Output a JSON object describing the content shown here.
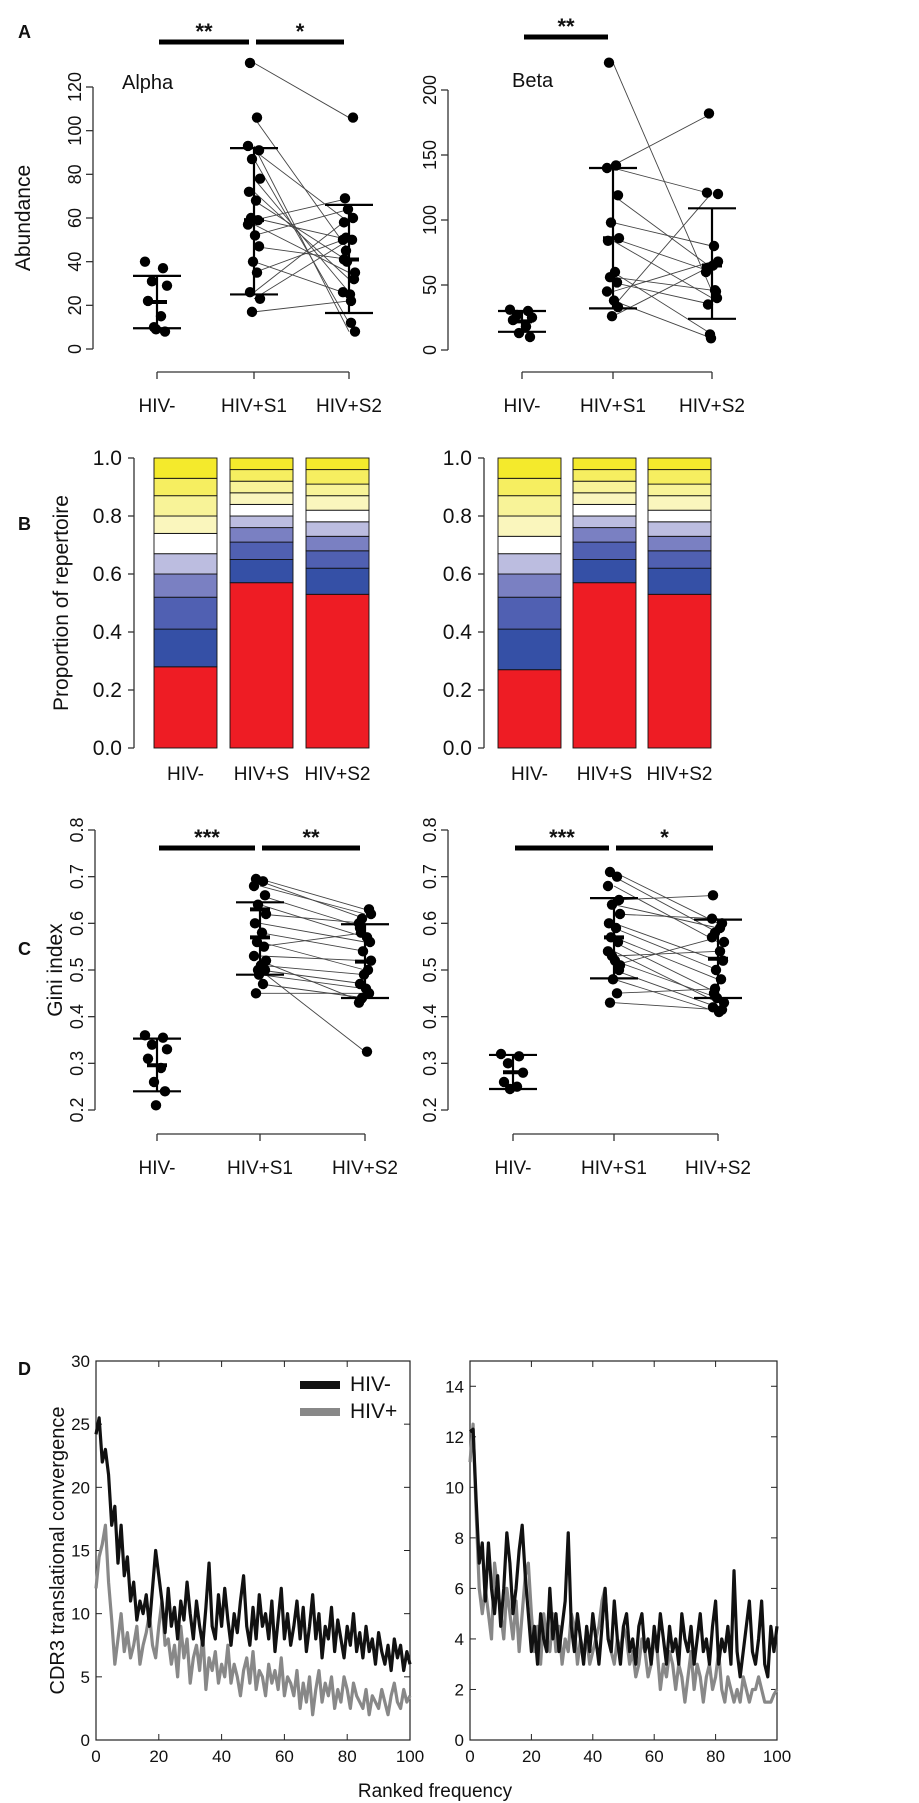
{
  "panel_letters": [
    "A",
    "B",
    "C",
    "D"
  ],
  "colors": {
    "black": "#111111",
    "gray": "#888888",
    "strata": [
      "#ee1c24",
      "#3550a6",
      "#5060b2",
      "#7a80c2",
      "#bcbde0",
      "#ffffff",
      "#faf6bd",
      "#f8f398",
      "#f6ee60",
      "#f4ea2c"
    ]
  },
  "chart_data": [
    {
      "id": "A-alpha",
      "type": "scatter",
      "title": "Alpha",
      "ylabel": "Abundance",
      "ylim": [
        0,
        120
      ],
      "yticks": [
        0,
        20,
        40,
        60,
        80,
        100,
        120
      ],
      "groups": [
        "HIV-",
        "HIV+S1",
        "HIV+S2"
      ],
      "summary": [
        {
          "group": "HIV-",
          "mean": 21.5,
          "lower": 9.5,
          "upper": 33.5
        },
        {
          "group": "HIV+S1",
          "mean": 59,
          "lower": 25,
          "upper": 92
        },
        {
          "group": "HIV+S2",
          "mean": 41,
          "lower": 16.5,
          "upper": 66
        }
      ],
      "hiv_neg": [
        40,
        37,
        31,
        29,
        22,
        15,
        10,
        8,
        9
      ],
      "paired": [
        [
          131,
          106
        ],
        [
          106,
          45
        ],
        [
          93,
          8
        ],
        [
          91,
          58
        ],
        [
          87,
          12
        ],
        [
          78,
          26
        ],
        [
          72,
          32
        ],
        [
          68,
          40
        ],
        [
          60,
          50
        ],
        [
          59,
          69
        ],
        [
          57,
          35
        ],
        [
          52,
          64
        ],
        [
          47,
          41
        ],
        [
          40,
          25
        ],
        [
          35,
          51
        ],
        [
          26,
          60
        ],
        [
          23,
          50
        ],
        [
          17,
          22
        ]
      ],
      "significance": [
        {
          "from": "HIV-",
          "to": "HIV+S1",
          "label": "**"
        },
        {
          "from": "HIV+S1",
          "to": "HIV+S2",
          "label": "*"
        }
      ]
    },
    {
      "id": "A-beta",
      "type": "scatter",
      "title": "Beta",
      "ylim": [
        0,
        200
      ],
      "yticks": [
        0,
        50,
        100,
        150,
        200
      ],
      "groups": [
        "HIV-",
        "HIV+S1",
        "HIV+S2"
      ],
      "summary": [
        {
          "group": "HIV-",
          "mean": 22,
          "lower": 14,
          "upper": 30
        },
        {
          "group": "HIV+S1",
          "mean": 86,
          "lower": 32,
          "upper": 140
        },
        {
          "group": "HIV+S2",
          "mean": 65,
          "lower": 24,
          "upper": 109
        }
      ],
      "hiv_neg": [
        31,
        30,
        27,
        25,
        23,
        18,
        13,
        10
      ],
      "paired": [
        [
          221,
          45
        ],
        [
          142,
          182
        ],
        [
          140,
          120
        ],
        [
          119,
          63
        ],
        [
          98,
          80
        ],
        [
          86,
          60
        ],
        [
          84,
          40
        ],
        [
          60,
          12
        ],
        [
          56,
          46
        ],
        [
          52,
          35
        ],
        [
          45,
          68
        ],
        [
          38,
          9
        ],
        [
          33,
          121
        ],
        [
          26,
          65
        ]
      ],
      "significance": [
        {
          "from": "HIV-",
          "to": "HIV+S1",
          "label": "**"
        }
      ]
    },
    {
      "id": "B-left",
      "type": "bar",
      "stacked": true,
      "ylabel": "Proportion of repertoire",
      "ylim": [
        0,
        1
      ],
      "yticks": [
        "0.0",
        "0.2",
        "0.4",
        "0.6",
        "0.8",
        "1.0"
      ],
      "categories": [
        "HIV-",
        "HIV+S",
        "HIV+S2"
      ],
      "stack_boundaries": [
        [
          0.28,
          0.41,
          0.52,
          0.6,
          0.67,
          0.74,
          0.8,
          0.87,
          0.93,
          1.0
        ],
        [
          0.57,
          0.65,
          0.71,
          0.76,
          0.8,
          0.84,
          0.88,
          0.92,
          0.96,
          1.0
        ],
        [
          0.53,
          0.62,
          0.68,
          0.73,
          0.78,
          0.82,
          0.87,
          0.91,
          0.96,
          1.0
        ]
      ]
    },
    {
      "id": "B-right",
      "type": "bar",
      "stacked": true,
      "ylim": [
        0,
        1
      ],
      "yticks": [
        "0.0",
        "0.2",
        "0.4",
        "0.6",
        "0.8",
        "1.0"
      ],
      "categories": [
        "HIV-",
        "HIV+S",
        "HIV+S2"
      ],
      "stack_boundaries": [
        [
          0.27,
          0.41,
          0.52,
          0.6,
          0.67,
          0.73,
          0.8,
          0.87,
          0.93,
          1.0
        ],
        [
          0.57,
          0.65,
          0.71,
          0.76,
          0.8,
          0.84,
          0.88,
          0.92,
          0.96,
          1.0
        ],
        [
          0.53,
          0.62,
          0.68,
          0.73,
          0.78,
          0.82,
          0.87,
          0.91,
          0.96,
          1.0
        ]
      ]
    },
    {
      "id": "C-left",
      "type": "scatter",
      "ylabel": "Gini index",
      "ylim": [
        0.2,
        0.8
      ],
      "yticks": [
        "0.2",
        "0.3",
        "0.4",
        "0.5",
        "0.6",
        "0.7",
        "0.8"
      ],
      "groups": [
        "HIV-",
        "HIV+S1",
        "HIV+S2"
      ],
      "summary": [
        {
          "group": "HIV-",
          "mean": 0.296,
          "lower": 0.24,
          "upper": 0.353
        },
        {
          "group": "HIV+S1",
          "mean": 0.57,
          "lower": 0.49,
          "upper": 0.645
        },
        {
          "group": "HIV+S2",
          "mean": 0.518,
          "lower": 0.44,
          "upper": 0.598
        },
        {
          "group": "HIV+S1",
          "mean": 0.63,
          "lower": 0.63,
          "upper": 0.63
        }
      ],
      "hiv_neg": [
        0.36,
        0.355,
        0.34,
        0.33,
        0.31,
        0.29,
        0.26,
        0.24,
        0.21
      ],
      "paired": [
        [
          0.695,
          0.63
        ],
        [
          0.69,
          0.61
        ],
        [
          0.68,
          0.62
        ],
        [
          0.66,
          0.59
        ],
        [
          0.64,
          0.57
        ],
        [
          0.62,
          0.6
        ],
        [
          0.6,
          0.56
        ],
        [
          0.58,
          0.54
        ],
        [
          0.56,
          0.5
        ],
        [
          0.55,
          0.58
        ],
        [
          0.53,
          0.52
        ],
        [
          0.51,
          0.49
        ],
        [
          0.5,
          0.47
        ],
        [
          0.49,
          0.46
        ],
        [
          0.47,
          0.44
        ],
        [
          0.45,
          0.45
        ],
        [
          0.52,
          0.43
        ],
        [
          0.5,
          0.325
        ]
      ],
      "significance": [
        {
          "from": "HIV-",
          "to": "HIV+S1",
          "label": "***"
        },
        {
          "from": "HIV+S1",
          "to": "HIV+S2",
          "label": "**"
        }
      ]
    },
    {
      "id": "C-right",
      "type": "scatter",
      "ylim": [
        0.2,
        0.8
      ],
      "yticks": [
        "0.2",
        "0.3",
        "0.4",
        "0.5",
        "0.6",
        "0.7",
        "0.8"
      ],
      "groups": [
        "HIV-",
        "HIV+S1",
        "HIV+S2"
      ],
      "summary": [
        {
          "group": "HIV-",
          "mean": 0.281,
          "lower": 0.245,
          "upper": 0.318
        },
        {
          "group": "HIV+S1",
          "mean": 0.57,
          "lower": 0.482,
          "upper": 0.654
        },
        {
          "group": "HIV+S2",
          "mean": 0.524,
          "lower": 0.44,
          "upper": 0.608
        }
      ],
      "hiv_neg": [
        0.32,
        0.315,
        0.3,
        0.28,
        0.26,
        0.25,
        0.245
      ],
      "paired": [
        [
          0.71,
          0.6
        ],
        [
          0.7,
          0.58
        ],
        [
          0.68,
          0.56
        ],
        [
          0.65,
          0.66
        ],
        [
          0.64,
          0.59
        ],
        [
          0.62,
          0.61
        ],
        [
          0.6,
          0.52
        ],
        [
          0.59,
          0.5
        ],
        [
          0.57,
          0.48
        ],
        [
          0.56,
          0.45
        ],
        [
          0.54,
          0.43
        ],
        [
          0.52,
          0.44
        ],
        [
          0.5,
          0.42
        ],
        [
          0.48,
          0.41
        ],
        [
          0.45,
          0.46
        ],
        [
          0.43,
          0.415
        ],
        [
          0.51,
          0.57
        ],
        [
          0.53,
          0.54
        ]
      ],
      "significance": [
        {
          "from": "HIV-",
          "to": "HIV+S1",
          "label": "***"
        },
        {
          "from": "HIV+S1",
          "to": "HIV+S2",
          "label": "*"
        }
      ]
    },
    {
      "id": "D-left",
      "type": "line",
      "ylabel": "CDR3 translational convergence",
      "xlim": [
        0,
        100
      ],
      "ylim": [
        0,
        30
      ],
      "xticks": [
        0,
        20,
        40,
        60,
        80,
        100
      ],
      "yticks": [
        0,
        5,
        10,
        15,
        20,
        25,
        30
      ],
      "legend": {
        "position": "top-right",
        "entries": [
          "HIV-",
          "HIV+"
        ]
      },
      "series": [
        {
          "name": "HIV-",
          "color": "#111111",
          "values": [
            24.2,
            25.5,
            22.0,
            23.0,
            21.0,
            17.0,
            18.5,
            14.0,
            17.0,
            13.0,
            14.5,
            11.0,
            12.5,
            9.5,
            11.0,
            10.0,
            11.5,
            9.0,
            12.0,
            15.0,
            13.0,
            11.0,
            8.5,
            12.0,
            9.0,
            10.5,
            8.0,
            11.0,
            9.5,
            12.5,
            10.0,
            8.0,
            11.0,
            9.0,
            7.5,
            10.5,
            14.0,
            9.0,
            8.0,
            11.5,
            9.0,
            12.0,
            9.5,
            7.5,
            10.0,
            8.5,
            11.0,
            13.0,
            9.0,
            7.5,
            10.5,
            8.0,
            11.5,
            9.0,
            10.0,
            8.0,
            11.0,
            7.0,
            9.5,
            12.0,
            8.0,
            10.0,
            7.5,
            9.0,
            11.0,
            8.0,
            10.5,
            7.0,
            9.0,
            11.5,
            8.0,
            10.0,
            6.5,
            9.0,
            8.0,
            10.5,
            7.0,
            9.5,
            8.0,
            6.5,
            9.0,
            7.5,
            10.0,
            7.0,
            8.5,
            6.5,
            9.0,
            7.0,
            8.0,
            6.0,
            8.5,
            7.0,
            6.0,
            7.5,
            5.5,
            8.0,
            6.5,
            7.5,
            5.5,
            7.0,
            6.0
          ]
        },
        {
          "name": "HIV+",
          "color": "#888888",
          "values": [
            12.0,
            14.5,
            15.5,
            17.0,
            12.5,
            9.5,
            6.0,
            8.0,
            10.0,
            7.0,
            8.5,
            6.5,
            7.5,
            9.0,
            6.0,
            7.5,
            8.5,
            10.0,
            7.5,
            6.5,
            9.0,
            11.0,
            7.5,
            8.0,
            6.0,
            7.5,
            5.0,
            9.0,
            6.5,
            8.0,
            4.5,
            6.5,
            7.5,
            5.5,
            8.5,
            4.0,
            6.5,
            5.5,
            7.0,
            4.5,
            6.0,
            5.0,
            7.5,
            4.5,
            6.0,
            5.0,
            3.5,
            5.5,
            6.5,
            4.5,
            7.0,
            4.0,
            5.5,
            5.0,
            3.5,
            6.0,
            4.5,
            5.5,
            4.0,
            6.5,
            3.5,
            5.0,
            4.5,
            3.5,
            5.5,
            2.5,
            4.5,
            3.0,
            5.0,
            2.0,
            4.0,
            5.5,
            3.0,
            4.5,
            3.5,
            5.0,
            2.5,
            4.0,
            3.0,
            5.0,
            4.0,
            2.5,
            4.5,
            3.5,
            3.0,
            2.5,
            4.0,
            2.0,
            3.5,
            3.0,
            2.5,
            4.0,
            3.0,
            2.0,
            3.5,
            4.5,
            3.0,
            2.5,
            4.0,
            3.0,
            3.5
          ]
        }
      ]
    },
    {
      "id": "D-right",
      "type": "line",
      "xlabel": "Ranked frequency",
      "xlim": [
        0,
        100
      ],
      "ylim": [
        0,
        15
      ],
      "xticks": [
        0,
        20,
        40,
        60,
        80,
        100
      ],
      "yticks": [
        0,
        2,
        4,
        6,
        8,
        10,
        12,
        14
      ],
      "series": [
        {
          "name": "HIV-",
          "color": "#111111",
          "values": [
            12.2,
            12.3,
            9.5,
            7.0,
            7.8,
            5.5,
            7.8,
            6.0,
            5.0,
            6.5,
            4.5,
            6.0,
            8.2,
            7.0,
            5.0,
            6.0,
            7.5,
            8.5,
            6.5,
            5.0,
            3.5,
            4.5,
            3.0,
            5.0,
            4.0,
            3.5,
            6.0,
            4.0,
            5.0,
            3.5,
            4.5,
            5.5,
            8.2,
            4.5,
            3.5,
            5.0,
            4.0,
            3.0,
            4.5,
            3.5,
            5.0,
            4.0,
            3.0,
            4.5,
            6.0,
            4.0,
            3.5,
            5.5,
            4.0,
            3.0,
            4.5,
            5.0,
            3.5,
            4.0,
            3.0,
            4.5,
            5.0,
            3.5,
            4.0,
            3.0,
            4.5,
            3.5,
            5.0,
            4.0,
            3.0,
            4.5,
            3.5,
            4.0,
            3.0,
            5.0,
            4.0,
            3.5,
            4.5,
            3.0,
            4.0,
            5.0,
            3.5,
            4.0,
            3.0,
            4.5,
            5.5,
            3.0,
            4.0,
            3.5,
            4.5,
            3.0,
            6.7,
            3.5,
            2.5,
            3.5,
            4.5,
            5.5,
            3.5,
            3.0,
            4.0,
            5.5,
            3.0,
            2.5,
            4.5,
            3.5,
            4.5
          ]
        },
        {
          "name": "HIV+",
          "color": "#888888",
          "values": [
            11.0,
            12.5,
            9.0,
            6.0,
            5.0,
            6.0,
            5.0,
            4.0,
            7.0,
            6.0,
            5.0,
            4.0,
            6.0,
            5.0,
            4.0,
            5.5,
            3.5,
            5.0,
            6.5,
            7.0,
            5.0,
            3.5,
            4.5,
            3.0,
            5.0,
            4.0,
            3.5,
            5.0,
            3.5,
            4.5,
            3.0,
            4.0,
            3.5,
            5.0,
            4.5,
            3.0,
            4.0,
            3.5,
            4.0,
            3.0,
            3.5,
            4.0,
            4.5,
            5.5,
            6.0,
            4.0,
            3.5,
            3.0,
            4.0,
            3.5,
            4.5,
            4.0,
            3.0,
            3.5,
            2.5,
            3.0,
            4.0,
            3.5,
            2.5,
            3.0,
            4.0,
            3.5,
            2.0,
            3.0,
            2.5,
            3.5,
            3.0,
            2.0,
            3.0,
            2.5,
            1.5,
            2.5,
            3.5,
            2.0,
            3.0,
            2.5,
            1.5,
            2.5,
            3.0,
            2.0,
            2.5,
            3.5,
            2.0,
            1.5,
            2.5,
            2.0,
            1.5,
            2.0,
            1.5,
            2.5,
            2.0,
            1.5,
            2.0,
            2.0,
            2.5,
            2.0,
            1.5,
            1.5,
            1.5,
            1.8,
            2.0
          ]
        }
      ]
    }
  ]
}
